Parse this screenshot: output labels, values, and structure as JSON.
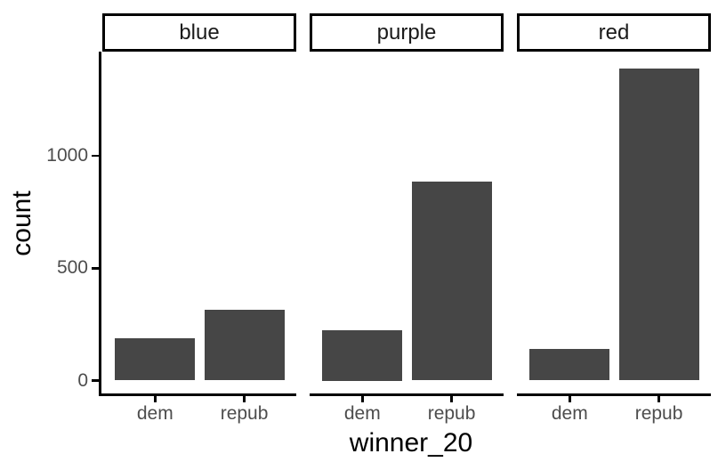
{
  "chart_data": {
    "type": "bar",
    "title": "",
    "xlabel": "winner_20",
    "ylabel": "count",
    "categories": [
      "dem",
      "repub"
    ],
    "facet_labels": [
      "blue",
      "purple",
      "red"
    ],
    "series": [
      {
        "name": "blue",
        "values": [
          190,
          315
        ]
      },
      {
        "name": "purple",
        "values": [
          225,
          885
        ]
      },
      {
        "name": "red",
        "values": [
          140,
          1390
        ]
      }
    ],
    "y_ticks": [
      0,
      500,
      1000
    ],
    "ylim": [
      0,
      1470
    ],
    "grid": false,
    "legend": "none",
    "layout_hint": "three column facets sharing one y axis; each facet has its own x axis line"
  },
  "colors": {
    "bar_fill": "#464646",
    "axis_line": "#000000",
    "tick_label": "#4d4d4d",
    "axis_title": "#000000",
    "strip_text": "#1a1a1a",
    "strip_border": "#000000",
    "background": "#ffffff"
  }
}
